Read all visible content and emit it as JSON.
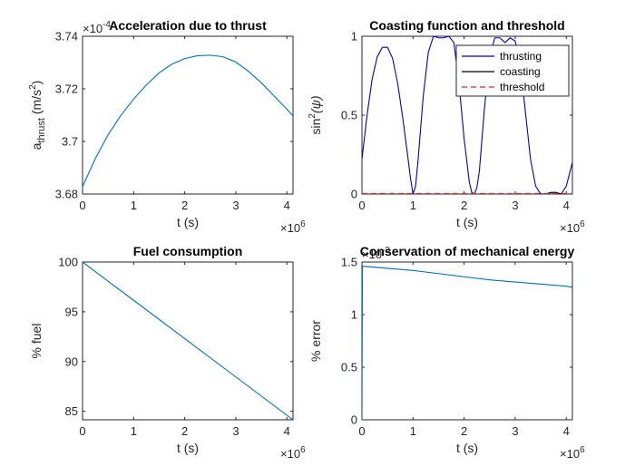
{
  "colors": {
    "background": "#ffffff",
    "axes": "#262626",
    "matlab_blue": "#0072BD",
    "thrusting": "#0000CC",
    "coasting": "#000000",
    "threshold": "#D62728"
  },
  "chart_data": [
    {
      "type": "line",
      "title": "Acceleration due to thrust",
      "xlabel": "t (s)",
      "ylabel_base": "a",
      "ylabel_sub": "thrust",
      "ylabel_unit": " (m/s",
      "ylabel_sup": "2",
      "ylabel_close": ")",
      "x_exponent_prefix": "×10",
      "x_exponent_power": "6",
      "y_exponent_prefix": "×10",
      "y_exponent_power": "-4",
      "xlim": [
        0,
        4.12
      ],
      "ylim": [
        3.68,
        3.74
      ],
      "xticks": [
        0,
        1,
        2,
        3,
        4
      ],
      "yticks": [
        3.68,
        3.7,
        3.72,
        3.74
      ],
      "xtick_labels": [
        "0",
        "1",
        "2",
        "3",
        "4"
      ],
      "ytick_labels": [
        "3.68",
        "3.7",
        "3.72",
        "3.74"
      ],
      "series": [
        {
          "color": "#0072BD",
          "x": [
            0,
            0.25,
            0.5,
            0.75,
            1.0,
            1.25,
            1.5,
            1.75,
            2.0,
            2.25,
            2.5,
            2.75,
            3.0,
            3.25,
            3.5,
            3.75,
            4.0,
            4.12
          ],
          "y": [
            3.6828,
            3.6935,
            3.7025,
            3.7099,
            3.7161,
            3.7215,
            3.7261,
            3.7294,
            3.7315,
            3.7326,
            3.7328,
            3.7322,
            3.7302,
            3.7266,
            3.7223,
            3.7173,
            3.7123,
            3.7097
          ]
        }
      ]
    },
    {
      "type": "line",
      "title": "Coasting function and threshold",
      "xlabel": "t (s)",
      "ylabel_base": "sin",
      "ylabel_sup": "2",
      "ylabel_arg": "(ψ)",
      "x_exponent_prefix": "×10",
      "x_exponent_power": "6",
      "xlim": [
        0,
        4.12
      ],
      "ylim": [
        0,
        1
      ],
      "xticks": [
        0,
        1,
        2,
        3,
        4
      ],
      "yticks": [
        0,
        0.5,
        1
      ],
      "xtick_labels": [
        "0",
        "1",
        "2",
        "3",
        "4"
      ],
      "ytick_labels": [
        "0",
        "0.5",
        "1"
      ],
      "legend_position": "top-right",
      "series": [
        {
          "name": "thrusting",
          "color": "#0000CC",
          "x": [
            0,
            0.1,
            0.2,
            0.3,
            0.4,
            0.5,
            0.6,
            0.7,
            0.8,
            0.9,
            0.95,
            1.0,
            1.05,
            1.1,
            1.2,
            1.3,
            1.4,
            1.5,
            1.6,
            1.7,
            1.8,
            1.9,
            2.0,
            2.1,
            2.15,
            2.2,
            2.25,
            2.3,
            2.4,
            2.5,
            2.6,
            2.7,
            2.8,
            2.9,
            3.0,
            3.1,
            3.2,
            3.3,
            3.4,
            3.5,
            3.6,
            3.7,
            3.8,
            3.9,
            4.0,
            4.12
          ],
          "y": [
            0.22,
            0.5,
            0.73,
            0.87,
            0.93,
            0.93,
            0.86,
            0.7,
            0.48,
            0.23,
            0.1,
            0.0,
            0.05,
            0.22,
            0.62,
            0.9,
            1.0,
            0.99,
            0.99,
            1.0,
            0.96,
            0.7,
            0.35,
            0.08,
            0.01,
            0.0,
            0.04,
            0.15,
            0.55,
            0.87,
            0.99,
            0.99,
            0.96,
            0.99,
            0.97,
            0.82,
            0.52,
            0.22,
            0.05,
            0.0,
            0.0,
            0.01,
            0.01,
            0.0,
            0.05,
            0.2
          ]
        },
        {
          "name": "coasting",
          "color": "#000000",
          "x": [
            3.48,
            3.6,
            3.7,
            3.8,
            3.9,
            3.95
          ],
          "y": [
            0.0,
            0.0,
            0.01,
            0.01,
            0.0,
            0.0
          ]
        },
        {
          "name": "threshold",
          "color": "#D62728",
          "dashed": true,
          "x": [
            0,
            4.12
          ],
          "y": [
            0.003,
            0.003
          ]
        }
      ]
    },
    {
      "type": "line",
      "title": "Fuel consumption",
      "xlabel": "t (s)",
      "ylabel": "% fuel",
      "x_exponent_prefix": "×10",
      "x_exponent_power": "6",
      "xlim": [
        0,
        4.12
      ],
      "ylim": [
        84.15,
        100
      ],
      "xticks": [
        0,
        1,
        2,
        3,
        4
      ],
      "yticks": [
        85,
        90,
        95,
        100
      ],
      "xtick_labels": [
        "0",
        "1",
        "2",
        "3",
        "4"
      ],
      "ytick_labels": [
        "85",
        "90",
        "95",
        "100"
      ],
      "series": [
        {
          "color": "#0072BD",
          "x": [
            0,
            4.12
          ],
          "y": [
            100,
            84.15
          ]
        }
      ]
    },
    {
      "type": "line",
      "title": "Conservation of mechanical energy",
      "xlabel": "t (s)",
      "ylabel": "% error",
      "x_exponent_prefix": "×10",
      "x_exponent_power": "6",
      "y_exponent_prefix": "×10",
      "y_exponent_power": "-3",
      "xlim": [
        0,
        4.12
      ],
      "ylim": [
        0,
        1.5
      ],
      "xticks": [
        0,
        1,
        2,
        3,
        4
      ],
      "yticks": [
        0,
        0.5,
        1,
        1.5
      ],
      "xtick_labels": [
        "0",
        "1",
        "2",
        "3",
        "4"
      ],
      "ytick_labels": [
        "0",
        "0.5",
        "1",
        "1.5"
      ],
      "series": [
        {
          "color": "#0072BD",
          "x": [
            0,
            0.01,
            0.02,
            0.5,
            1.0,
            1.5,
            2.0,
            2.5,
            3.0,
            3.5,
            4.0,
            4.12
          ],
          "y": [
            0,
            1.45,
            1.46,
            1.44,
            1.42,
            1.39,
            1.36,
            1.33,
            1.31,
            1.29,
            1.27,
            1.26
          ]
        }
      ]
    }
  ]
}
